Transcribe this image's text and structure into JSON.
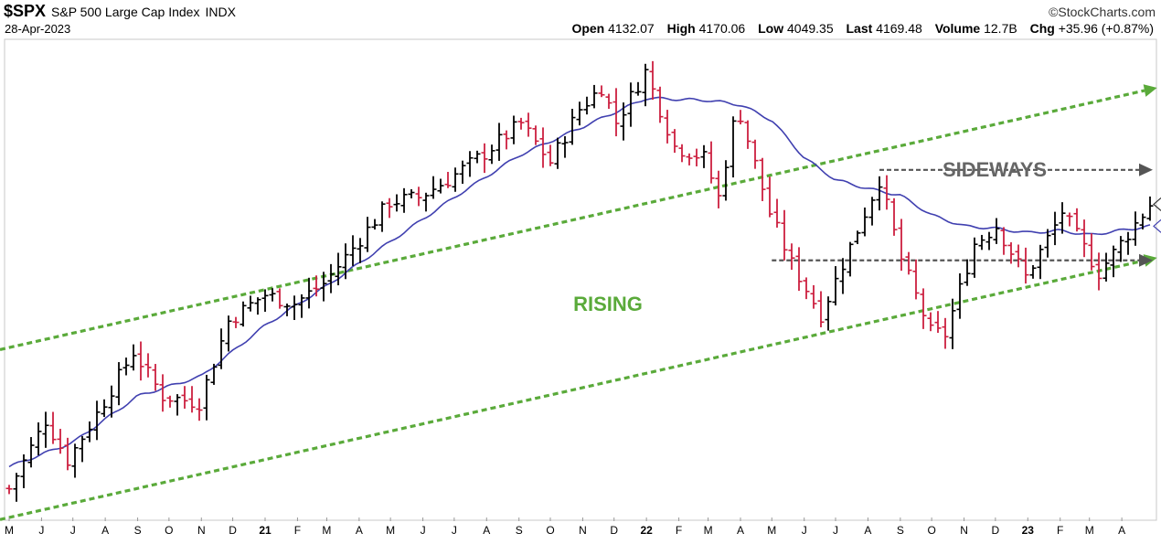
{
  "header": {
    "symbol": "$SPX",
    "name": "S&P 500 Large Cap Index",
    "exchange": "INDX",
    "brand": "©StockCharts.com",
    "date": "28-Apr-2023",
    "open_label": "Open",
    "open_value": "4132.07",
    "high_label": "High",
    "high_value": "4170.06",
    "low_label": "Low",
    "low_value": "4049.35",
    "last_label": "Last",
    "last_value": "4169.48",
    "volume_label": "Volume",
    "volume_value": "12.7B",
    "chg_label": "Chg",
    "chg_value": "+35.96 (+0.87%)"
  },
  "colors": {
    "up_bar": "#000000",
    "down_bar": "#cc1f3f",
    "moving_average": "#4040b0",
    "trend_channel": "#5aaa3a",
    "range_lines": "#555555",
    "rising_text": "#5aaa3a",
    "sideways_text": "#666666"
  },
  "chart_data": {
    "type": "ohlc",
    "frequency": "weekly",
    "x_start": "2020-05-01",
    "x_end": "2023-04-28",
    "x_ticks": [
      {
        "date": "2020-05-01",
        "label": "M"
      },
      {
        "date": "2020-06-01",
        "label": "J"
      },
      {
        "date": "2020-07-01",
        "label": "J"
      },
      {
        "date": "2020-08-01",
        "label": "A"
      },
      {
        "date": "2020-09-01",
        "label": "S"
      },
      {
        "date": "2020-10-01",
        "label": "O"
      },
      {
        "date": "2020-11-01",
        "label": "N"
      },
      {
        "date": "2020-12-01",
        "label": "D"
      },
      {
        "date": "2021-01-01",
        "label": "21"
      },
      {
        "date": "2021-02-01",
        "label": "F"
      },
      {
        "date": "2021-03-01",
        "label": "M"
      },
      {
        "date": "2021-04-01",
        "label": "A"
      },
      {
        "date": "2021-05-01",
        "label": "M"
      },
      {
        "date": "2021-06-01",
        "label": "J"
      },
      {
        "date": "2021-07-01",
        "label": "J"
      },
      {
        "date": "2021-08-01",
        "label": "A"
      },
      {
        "date": "2021-09-01",
        "label": "S"
      },
      {
        "date": "2021-10-01",
        "label": "O"
      },
      {
        "date": "2021-11-01",
        "label": "N"
      },
      {
        "date": "2021-12-01",
        "label": "D"
      },
      {
        "date": "2022-01-01",
        "label": "22"
      },
      {
        "date": "2022-02-01",
        "label": "F"
      },
      {
        "date": "2022-03-01",
        "label": "M"
      },
      {
        "date": "2022-04-01",
        "label": "A"
      },
      {
        "date": "2022-05-01",
        "label": "M"
      },
      {
        "date": "2022-06-01",
        "label": "J"
      },
      {
        "date": "2022-07-01",
        "label": "J"
      },
      {
        "date": "2022-08-01",
        "label": "A"
      },
      {
        "date": "2022-09-01",
        "label": "S"
      },
      {
        "date": "2022-10-01",
        "label": "O"
      },
      {
        "date": "2022-11-01",
        "label": "N"
      },
      {
        "date": "2022-12-01",
        "label": "D"
      },
      {
        "date": "2023-01-01",
        "label": "23"
      },
      {
        "date": "2023-02-01",
        "label": "F"
      },
      {
        "date": "2023-03-01",
        "label": "M"
      },
      {
        "date": "2023-04-01",
        "label": "A"
      }
    ],
    "bold_tick_labels": [
      "21",
      "22",
      "23"
    ],
    "grid": false,
    "y_axis_labels": false,
    "ylim": [
      2750,
      4900
    ],
    "price_anchors": [
      [
        "2020-05-01",
        2880
      ],
      [
        "2020-06-05",
        3190
      ],
      [
        "2020-06-26",
        3010
      ],
      [
        "2020-07-24",
        3220
      ],
      [
        "2020-08-28",
        3500
      ],
      [
        "2020-09-25",
        3300
      ],
      [
        "2020-10-30",
        3270
      ],
      [
        "2020-11-27",
        3640
      ],
      [
        "2020-12-31",
        3760
      ],
      [
        "2021-01-29",
        3720
      ],
      [
        "2021-02-26",
        3810
      ],
      [
        "2021-03-26",
        3970
      ],
      [
        "2021-04-30",
        4180
      ],
      [
        "2021-05-28",
        4200
      ],
      [
        "2021-06-25",
        4280
      ],
      [
        "2021-07-30",
        4400
      ],
      [
        "2021-08-27",
        4510
      ],
      [
        "2021-09-03",
        4535
      ],
      [
        "2021-10-01",
        4360
      ],
      [
        "2021-10-29",
        4600
      ],
      [
        "2021-11-19",
        4700
      ],
      [
        "2021-12-03",
        4540
      ],
      [
        "2021-12-31",
        4770
      ],
      [
        "2022-01-28",
        4430
      ],
      [
        "2022-02-25",
        4380
      ],
      [
        "2022-03-11",
        4200
      ],
      [
        "2022-03-29",
        4620
      ],
      [
        "2022-04-29",
        4130
      ],
      [
        "2022-05-20",
        3900
      ],
      [
        "2022-06-17",
        3670
      ],
      [
        "2022-07-29",
        4130
      ],
      [
        "2022-08-12",
        4280
      ],
      [
        "2022-09-02",
        3920
      ],
      [
        "2022-09-30",
        3590
      ],
      [
        "2022-10-14",
        3580
      ],
      [
        "2022-11-11",
        3990
      ],
      [
        "2022-12-02",
        4070
      ],
      [
        "2022-12-30",
        3840
      ],
      [
        "2023-01-27",
        4070
      ],
      [
        "2023-02-03",
        4136
      ],
      [
        "2023-03-10",
        3860
      ],
      [
        "2023-04-28",
        4169
      ]
    ],
    "moving_average_anchors": [
      [
        "2020-05-01",
        2980
      ],
      [
        "2020-07-01",
        3090
      ],
      [
        "2020-09-01",
        3300
      ],
      [
        "2020-11-01",
        3390
      ],
      [
        "2021-01-01",
        3620
      ],
      [
        "2021-03-01",
        3800
      ],
      [
        "2021-05-01",
        4000
      ],
      [
        "2021-07-01",
        4200
      ],
      [
        "2021-09-01",
        4390
      ],
      [
        "2021-11-01",
        4520
      ],
      [
        "2022-01-01",
        4650
      ],
      [
        "2022-03-01",
        4640
      ],
      [
        "2022-04-01",
        4620
      ],
      [
        "2022-05-01",
        4550
      ],
      [
        "2022-06-01",
        4380
      ],
      [
        "2022-07-01",
        4280
      ],
      [
        "2022-08-01",
        4240
      ],
      [
        "2022-09-01",
        4210
      ],
      [
        "2022-10-01",
        4120
      ],
      [
        "2022-11-01",
        4070
      ],
      [
        "2022-12-01",
        4060
      ],
      [
        "2023-01-01",
        4040
      ],
      [
        "2023-02-01",
        4050
      ],
      [
        "2023-03-01",
        4030
      ],
      [
        "2023-04-28",
        4070
      ]
    ],
    "trend_lines": [
      {
        "name": "upper_channel",
        "points": [
          [
            "2020-05-01",
            3520
          ],
          [
            "2023-04-28",
            4690
          ]
        ]
      },
      {
        "name": "lower_channel",
        "points": [
          [
            "2020-05-01",
            2750
          ],
          [
            "2023-04-28",
            3920
          ]
        ]
      }
    ],
    "range_lines": [
      {
        "name": "range_top",
        "value": 4325,
        "from": "2022-08-12",
        "to": "2023-04-28"
      },
      {
        "name": "range_bottom",
        "value": 3915,
        "from": "2022-05-01",
        "to": "2023-04-28"
      }
    ],
    "annotations": [
      {
        "text": "RISING"
      },
      {
        "text": "SIDEWAYS"
      }
    ]
  }
}
